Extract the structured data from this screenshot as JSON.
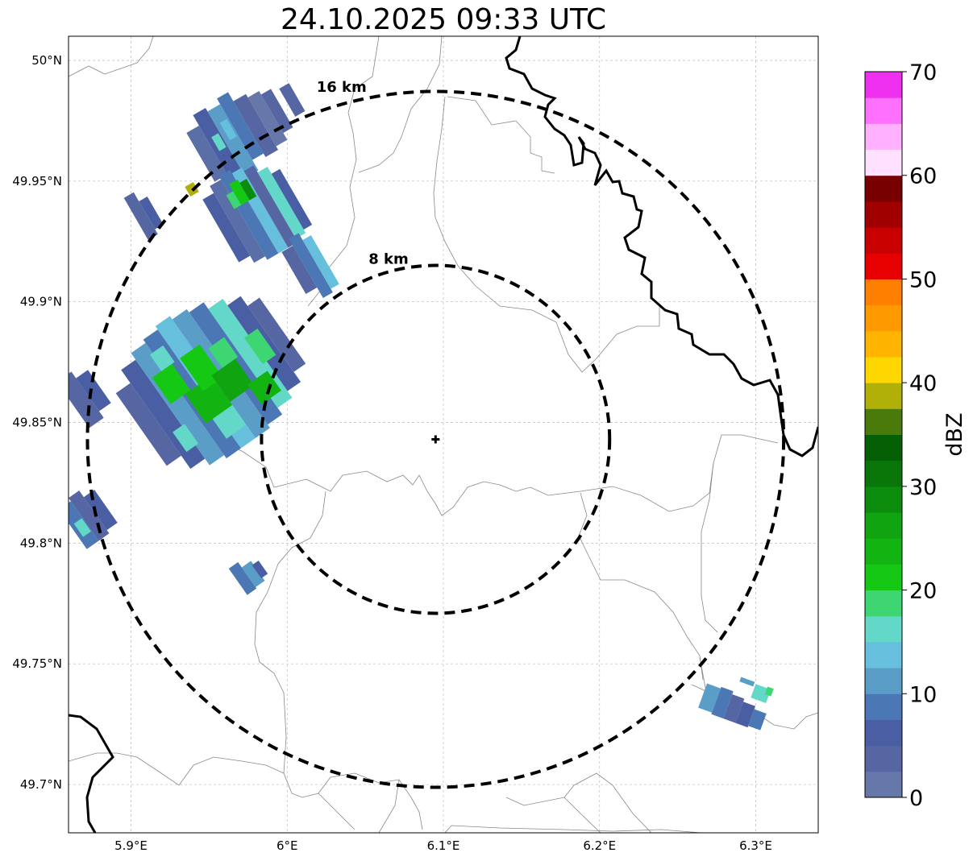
{
  "title": "24.10.2025 09:33 UTC",
  "map": {
    "lon_range": [
      5.86,
      6.34
    ],
    "lat_range": [
      49.68,
      50.01
    ],
    "lon_ticks": [
      {
        "value": 5.9,
        "label": "5.9°E"
      },
      {
        "value": 6.0,
        "label": "6°E"
      },
      {
        "value": 6.1,
        "label": "6.1°E"
      },
      {
        "value": 6.2,
        "label": "6.2°E"
      },
      {
        "value": 6.3,
        "label": "6.3°E"
      }
    ],
    "lat_ticks": [
      {
        "value": 50.0,
        "label": "50°N"
      },
      {
        "value": 49.95,
        "label": "49.95°N"
      },
      {
        "value": 49.9,
        "label": "49.9°N"
      },
      {
        "value": 49.85,
        "label": "49.85°N"
      },
      {
        "value": 49.8,
        "label": "49.8°N"
      },
      {
        "value": 49.75,
        "label": "49.75°N"
      },
      {
        "value": 49.7,
        "label": "49.7°N"
      }
    ],
    "radar_site": {
      "lon": 6.095,
      "lat": 49.843
    },
    "rings": [
      {
        "label": "8 km",
        "radius_km": 8
      },
      {
        "label": "16 km",
        "radius_km": 16
      }
    ],
    "grid": true
  },
  "colorbar": {
    "label": "dBZ",
    "min": 0,
    "max": 70,
    "tick_labels": [
      "0",
      "10",
      "20",
      "30",
      "40",
      "50",
      "60",
      "70"
    ],
    "colors": [
      "#6677aa",
      "#5566a3",
      "#4a5fa3",
      "#4b78b4",
      "#5a9ec8",
      "#66c0dd",
      "#63d7c8",
      "#3dd673",
      "#14c814",
      "#12b412",
      "#10a410",
      "#0c8c0c",
      "#0a760a",
      "#055f05",
      "#4a7a0a",
      "#b0b008",
      "#ffd700",
      "#ffb400",
      "#ff9900",
      "#ff7f00",
      "#e60000",
      "#c80000",
      "#a00000",
      "#780000",
      "#ffe0ff",
      "#ffb0ff",
      "#ff70ff",
      "#f030f0"
    ]
  }
}
